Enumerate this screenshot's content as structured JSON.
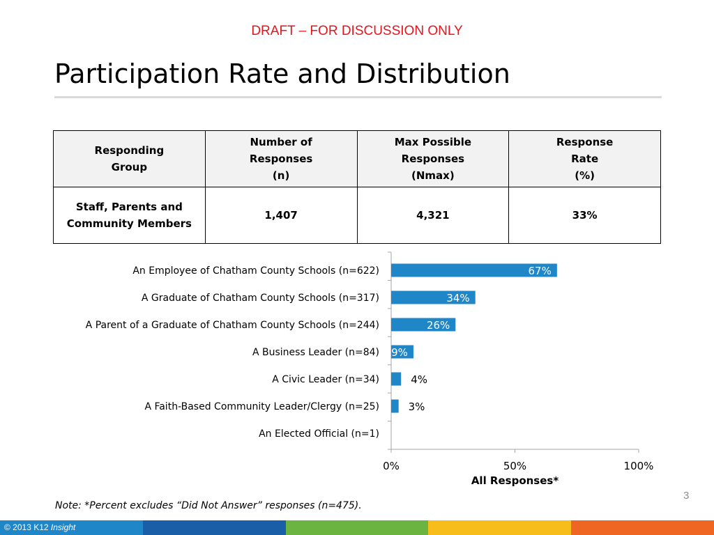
{
  "header": {
    "draft_label": "DRAFT – FOR DISCUSSION ONLY",
    "title": "Participation Rate and Distribution"
  },
  "summary_table": {
    "headers": [
      "Responding\nGroup",
      "Number of\nResponses\n(n)",
      "Max Possible\nResponses\n(Nmax)",
      "Response\nRate\n(%)"
    ],
    "rows": [
      [
        "Staff, Parents and\nCommunity Members",
        "1,407",
        "4,321",
        "33%"
      ]
    ]
  },
  "chart_data": {
    "type": "bar",
    "orientation": "horizontal",
    "categories": [
      "An Employee of Chatham County Schools (n=622)",
      "A Graduate of Chatham County Schools (n=317)",
      "A Parent of a Graduate of Chatham County Schools (n=244)",
      "A Business Leader (n=84)",
      "A Civic Leader (n=34)",
      "A Faith-Based Community Leader/Clergy (n=25)",
      "An Elected Official (n=1)"
    ],
    "values": [
      67,
      34,
      26,
      9,
      4,
      3,
      0
    ],
    "data_labels": [
      "67%",
      "34%",
      "26%",
      "9%",
      "4%",
      "3%",
      ""
    ],
    "xlabel": "All Responses*",
    "xlim": [
      0,
      100
    ],
    "xticks": [
      "0%",
      "50%",
      "100%"
    ],
    "bar_color": "#1f86c8",
    "grid": false
  },
  "note": "Note: *Percent excludes “Did Not Answer” responses (n=475).",
  "page_number": "3",
  "footer": {
    "copyright": "© 2013 K12",
    "brand_italic": "Insight",
    "stripe_colors": [
      "#1f86c8",
      "#1a5ea8",
      "#6bb43f",
      "#f7bd1b",
      "#ef6522"
    ]
  }
}
